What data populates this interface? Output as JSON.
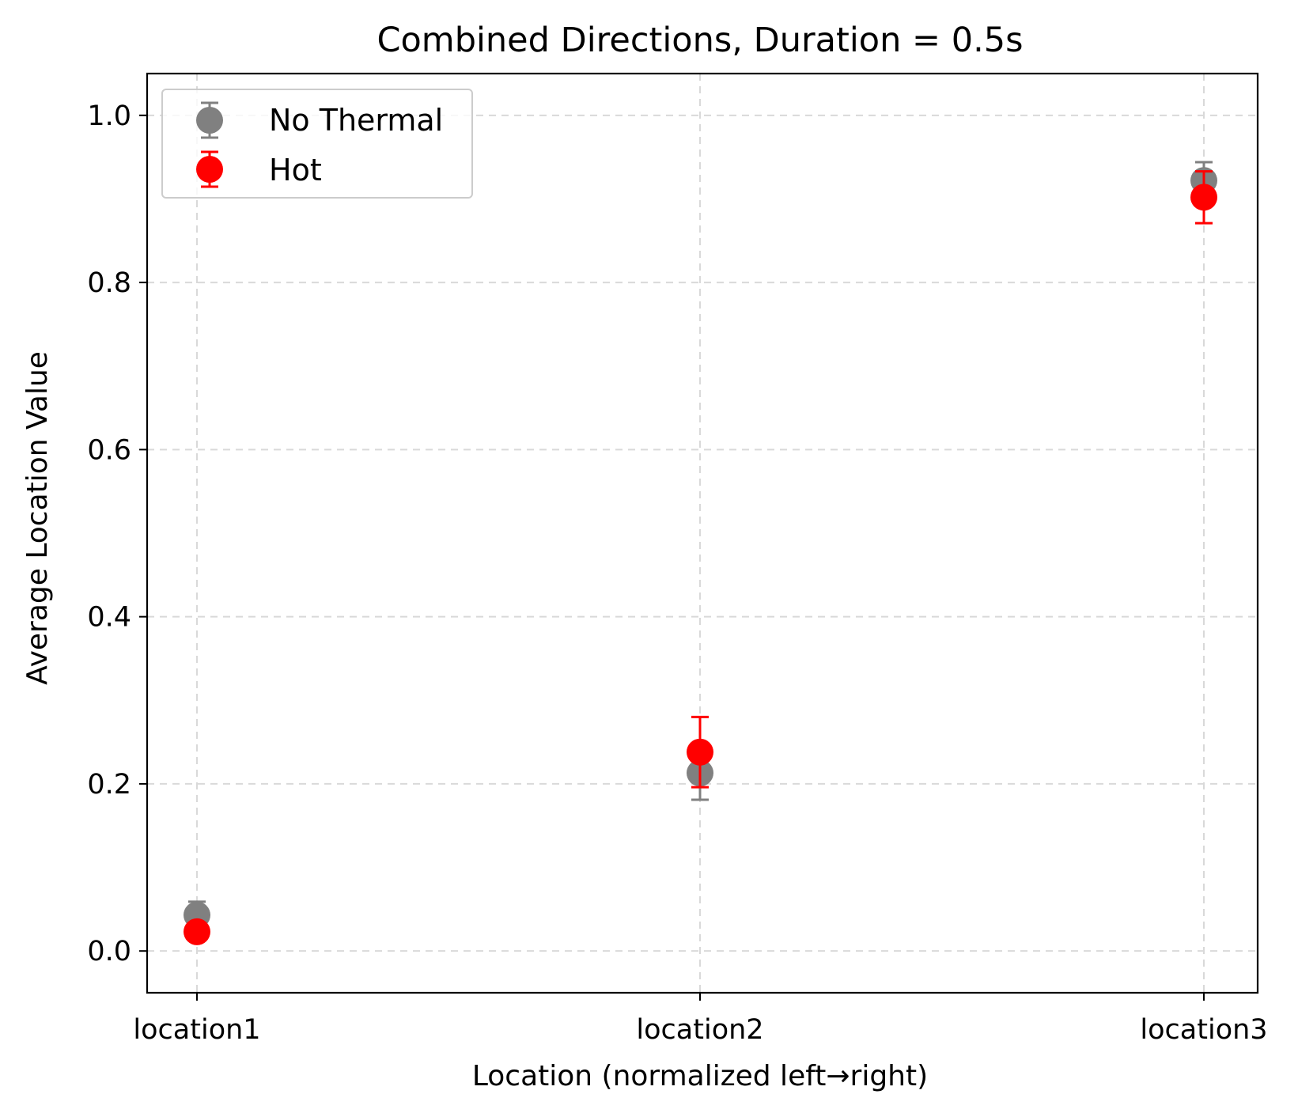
{
  "chart_data": {
    "type": "scatter",
    "title": "Combined Directions, Duration = 0.5s",
    "xlabel": "Location (normalized left→right)",
    "ylabel": "Average Location Value",
    "categories": [
      "location1",
      "location2",
      "location3"
    ],
    "ylim": [
      -0.05,
      1.05
    ],
    "yticks": [
      0.0,
      0.2,
      0.4,
      0.6,
      0.8,
      1.0
    ],
    "ytick_labels": [
      "0.0",
      "0.2",
      "0.4",
      "0.6",
      "0.8",
      "1.0"
    ],
    "grid": true,
    "legend_position": "top-left",
    "series": [
      {
        "name": "No Thermal",
        "color": "#808080",
        "values": [
          0.043,
          0.213,
          0.922
        ],
        "errors": [
          0.016,
          0.032,
          0.022
        ]
      },
      {
        "name": "Hot",
        "color": "#ff0000",
        "values": [
          0.023,
          0.238,
          0.902
        ],
        "errors": [
          0.004,
          0.042,
          0.031
        ]
      }
    ]
  }
}
